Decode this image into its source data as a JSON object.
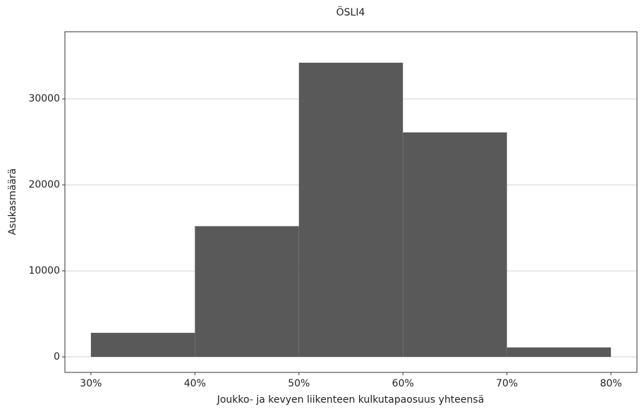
{
  "chart_data": {
    "type": "histogram",
    "title": "ÖSLI4",
    "x_label": "Joukko- ja kevyen liikenteen kulkutapaosuus yhteensä",
    "y_label": "Asukasmäärä",
    "bins": [
      30,
      40,
      50,
      60,
      70,
      80
    ],
    "values": [
      2800,
      15200,
      34200,
      26100,
      1100
    ],
    "color": "#595959",
    "xlim": [
      27.5,
      82.5
    ],
    "xticks": [
      {
        "value": 30,
        "label": "30%"
      },
      {
        "value": 40,
        "label": "40%"
      },
      {
        "value": 50,
        "label": "50%"
      },
      {
        "value": 60,
        "label": "60%"
      },
      {
        "value": 70,
        "label": "70%"
      },
      {
        "value": 80,
        "label": "80%"
      }
    ],
    "ylim": [
      -1800,
      37800
    ],
    "yticks": [
      0,
      10000,
      20000,
      30000
    ],
    "grid": true
  }
}
